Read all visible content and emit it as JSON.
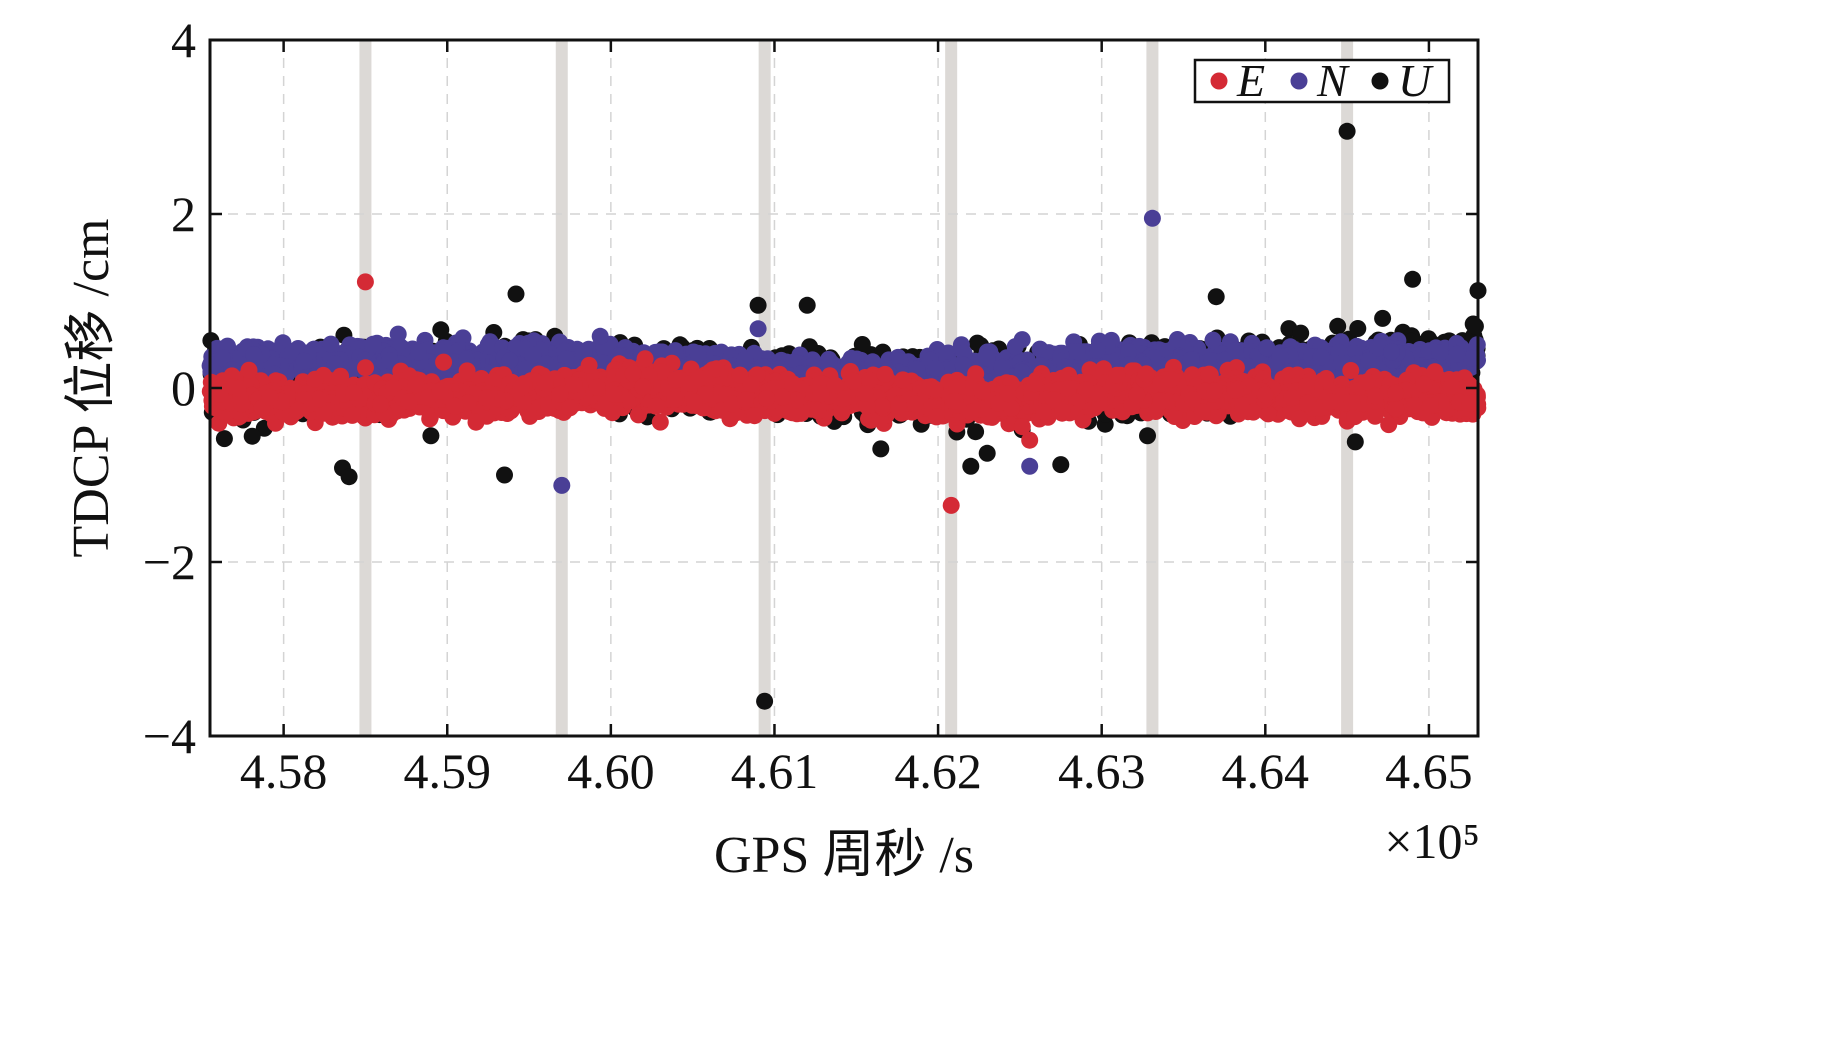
{
  "chart_data": {
    "type": "scatter",
    "xlabel": "GPS 周秒 /s",
    "ylabel": "TDCP 位移 /cm",
    "x_multiplier_label": "×10⁵",
    "xlim": [
      4.5755,
      4.653
    ],
    "ylim": [
      -4,
      4
    ],
    "x_ticks": [
      4.58,
      4.59,
      4.6,
      4.61,
      4.62,
      4.63,
      4.64,
      4.65
    ],
    "x_tick_labels": [
      "4.58",
      "4.59",
      "4.60",
      "4.61",
      "4.62",
      "4.63",
      "4.64",
      "4.65"
    ],
    "y_ticks": [
      -4,
      -2,
      0,
      2,
      4
    ],
    "y_tick_labels": [
      "−4",
      "−2",
      "0",
      "2",
      "4"
    ],
    "grid": true,
    "legend_position": "top-right",
    "highlight_bands_x": [
      4.585,
      4.597,
      4.6094,
      4.6208,
      4.6331,
      4.645
    ],
    "band_color": "#dcd9d6",
    "series": [
      {
        "name": "E",
        "color": "#d42a35",
        "count": 2600,
        "baseline": [
          [
            4.5755,
            -0.12
          ],
          [
            4.585,
            -0.13
          ],
          [
            4.595,
            -0.06
          ],
          [
            4.6,
            0.0
          ],
          [
            4.605,
            -0.03
          ],
          [
            4.61,
            -0.1
          ],
          [
            4.615,
            -0.08
          ],
          [
            4.62,
            -0.15
          ],
          [
            4.625,
            -0.14
          ],
          [
            4.63,
            -0.05
          ],
          [
            4.635,
            -0.05
          ],
          [
            4.64,
            -0.08
          ],
          [
            4.645,
            -0.1
          ],
          [
            4.653,
            -0.1
          ]
        ],
        "spread": 0.2,
        "outliers": [
          [
            4.585,
            1.22
          ],
          [
            4.6208,
            -1.35
          ],
          [
            4.6256,
            -0.6
          ]
        ]
      },
      {
        "name": "N",
        "color": "#4a3f96",
        "count": 2600,
        "baseline": [
          [
            4.5755,
            0.3
          ],
          [
            4.585,
            0.32
          ],
          [
            4.595,
            0.32
          ],
          [
            4.6,
            0.28
          ],
          [
            4.605,
            0.22
          ],
          [
            4.61,
            0.15
          ],
          [
            4.615,
            0.1
          ],
          [
            4.62,
            0.15
          ],
          [
            4.625,
            0.2
          ],
          [
            4.63,
            0.3
          ],
          [
            4.635,
            0.35
          ],
          [
            4.64,
            0.3
          ],
          [
            4.645,
            0.3
          ],
          [
            4.653,
            0.3
          ]
        ],
        "spread": 0.17,
        "outliers": [
          [
            4.597,
            -1.12
          ],
          [
            4.6331,
            1.95
          ],
          [
            4.6256,
            -0.9
          ],
          [
            4.587,
            0.62
          ],
          [
            4.609,
            0.68
          ]
        ]
      },
      {
        "name": "U",
        "color": "#111111",
        "count": 1700,
        "baseline": [
          [
            4.5755,
            0.05
          ],
          [
            4.585,
            0.05
          ],
          [
            4.59,
            0.1
          ],
          [
            4.595,
            0.2
          ],
          [
            4.6,
            0.15
          ],
          [
            4.605,
            0.05
          ],
          [
            4.61,
            0.08
          ],
          [
            4.615,
            0.05
          ],
          [
            4.62,
            0.0
          ],
          [
            4.625,
            0.05
          ],
          [
            4.63,
            0.1
          ],
          [
            4.635,
            0.15
          ],
          [
            4.64,
            0.15
          ],
          [
            4.645,
            0.25
          ],
          [
            4.653,
            0.35
          ]
        ],
        "spread": 0.33,
        "outliers": [
          [
            4.6094,
            -3.6
          ],
          [
            4.645,
            2.95
          ],
          [
            4.653,
            1.12
          ],
          [
            4.649,
            1.25
          ],
          [
            4.637,
            1.05
          ],
          [
            4.5942,
            1.08
          ],
          [
            4.612,
            0.95
          ],
          [
            4.609,
            0.95
          ],
          [
            4.5836,
            -0.92
          ],
          [
            4.584,
            -1.02
          ],
          [
            4.5935,
            -1.0
          ],
          [
            4.6275,
            -0.88
          ],
          [
            4.622,
            -0.9
          ],
          [
            4.6455,
            -0.62
          ],
          [
            4.6165,
            -0.7
          ],
          [
            4.6328,
            -0.55
          ],
          [
            4.589,
            -0.55
          ],
          [
            4.623,
            -0.75
          ]
        ]
      }
    ]
  }
}
